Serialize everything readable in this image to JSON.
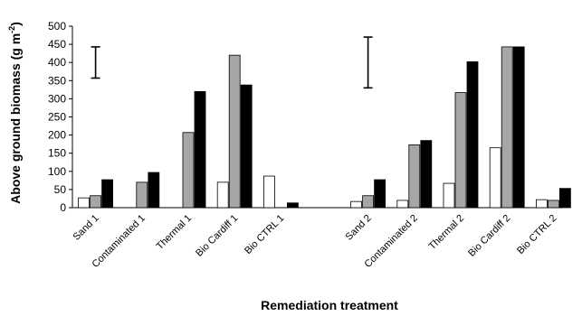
{
  "chart_data": {
    "type": "bar",
    "title": "",
    "xlabel": "Remediation treatment",
    "ylabel": "Above ground biomass (g m",
    "ylabel_sup": "-2",
    "ylabel_close": ")",
    "ylim": [
      0,
      500
    ],
    "yticks": [
      "0",
      "50",
      "100",
      "150",
      "200",
      "250",
      "300",
      "350",
      "400",
      "450",
      "500"
    ],
    "grid": false,
    "legend": "none",
    "categories": [
      "Sand 1",
      "Contaminated 1",
      "Thermal 1",
      "Bio Cardiff 1",
      "Bio CTRL 1",
      "Sand 2",
      "Contaminated 2",
      "Thermal 2",
      "Bio Cardiff 2",
      "Bio CTRL 2"
    ],
    "series": [
      {
        "color": "#ffffff",
        "values": [
          27,
          0,
          0,
          70,
          87,
          17,
          20,
          67,
          165,
          22
        ]
      },
      {
        "color": "#a6a6a6",
        "values": [
          33,
          70,
          207,
          420,
          0,
          33,
          173,
          317,
          443,
          20
        ]
      },
      {
        "color": "#000000",
        "values": [
          77,
          97,
          320,
          338,
          13,
          77,
          185,
          402,
          443,
          53
        ]
      }
    ],
    "error_bars": [
      {
        "group": 1,
        "center": 400,
        "low": 357,
        "high": 443
      },
      {
        "group": 2,
        "center": 400,
        "low": 330,
        "high": 470
      }
    ]
  }
}
